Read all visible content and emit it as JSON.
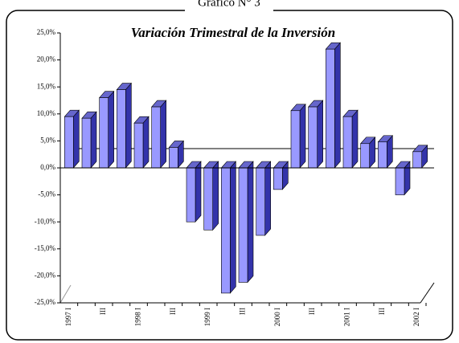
{
  "header": "Gráfico N° 3",
  "chart_data": {
    "type": "bar3d",
    "title": "Variación Trimestral de la Inversión",
    "categories": [
      "1997 I",
      null,
      "III",
      null,
      "1998 I",
      null,
      "III",
      null,
      "1999 I",
      null,
      "III",
      null,
      "2000 I",
      null,
      "III",
      null,
      "2001 I",
      null,
      "III",
      null,
      "2002 I"
    ],
    "values": [
      9.5,
      9.2,
      13,
      14.5,
      8.3,
      11.3,
      3.8,
      -10,
      -11.5,
      -23.2,
      -21.2,
      -12.5,
      -4,
      10.6,
      11.3,
      22,
      9.5,
      4.5,
      4.8,
      -5,
      3
    ],
    "color": "#9999ff",
    "ylim": [
      -25,
      25
    ],
    "yticks": [
      {
        "value": -25,
        "label": "-25,0%"
      },
      {
        "value": -20,
        "label": "-20,0%"
      },
      {
        "value": -15,
        "label": "-15,0%"
      },
      {
        "value": -10,
        "label": "-10,0%"
      },
      {
        "value": -5,
        "label": "-5,0%"
      },
      {
        "value": 0,
        "label": "0,0%"
      },
      {
        "value": 5,
        "label": "5,0%"
      },
      {
        "value": 10,
        "label": "10,0%"
      },
      {
        "value": 15,
        "label": "15,0%"
      },
      {
        "value": 20,
        "label": "20,0%"
      },
      {
        "value": 25,
        "label": "25,0%"
      }
    ]
  }
}
